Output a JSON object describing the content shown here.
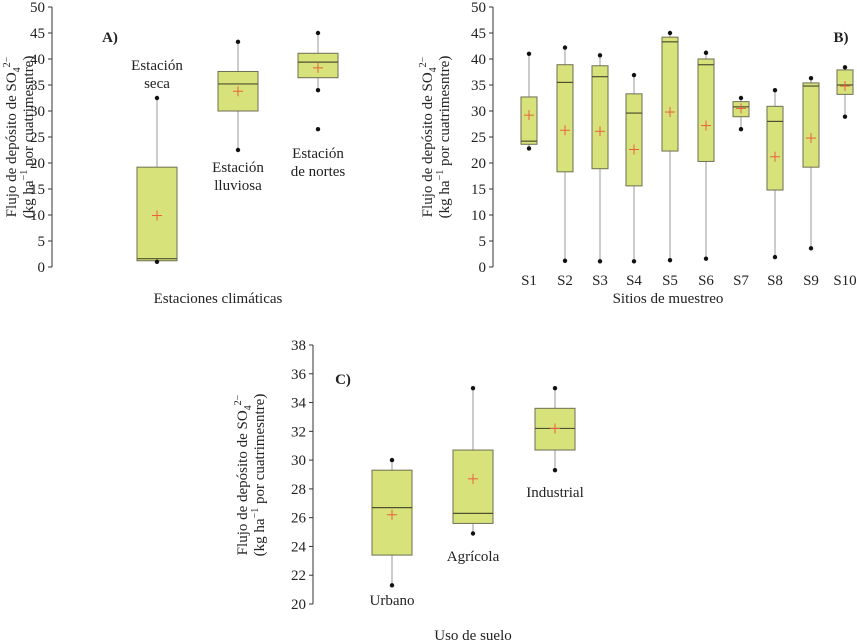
{
  "colors": {
    "box_fill": "#d8e27a",
    "box_stroke": "#6e6e52",
    "median": "#4f4f32",
    "mean_marker": "#e8603c",
    "whisker": "#9a9a9a",
    "axis": "#333333"
  },
  "chart_data": [
    {
      "type": "box",
      "panel": "A)",
      "ylabel_line1": "Flujo de depósito de SO",
      "ylabel_sub": "4",
      "ylabel_sup": "2−",
      "ylabel_line2_pre": "(kg ha",
      "ylabel_line2_sup": "−1",
      "ylabel_line2_post": " por cuatrimesntre)",
      "xlabel": "Estaciones climáticas",
      "ylim": [
        0,
        50
      ],
      "yticks": [
        0,
        5,
        10,
        15,
        20,
        25,
        30,
        35,
        40,
        45,
        50
      ],
      "boxes": [
        {
          "label_lines": [
            "Estación",
            "seca"
          ],
          "label_pos": "above",
          "min": 1.0,
          "q1": 1.2,
          "median": 1.6,
          "q3": 19.2,
          "max": 32.5,
          "mean": 9.9
        },
        {
          "label_lines": [
            "Estación",
            "lluviosa"
          ],
          "label_pos": "below",
          "min": 22.5,
          "q1": 30.0,
          "median": 35.2,
          "q3": 37.6,
          "max": 43.3,
          "mean": 33.8
        },
        {
          "label_lines": [
            "Estación",
            "de nortes"
          ],
          "label_pos": "below",
          "min": 34.0,
          "q1": 36.4,
          "median": 39.4,
          "q3": 41.1,
          "max": 45.0,
          "outliers": [
            26.5
          ],
          "mean": 38.3
        }
      ]
    },
    {
      "type": "box",
      "panel": "B)",
      "ylabel_line1": "Flujo de depósito de SO",
      "ylabel_sub": "4",
      "ylabel_sup": "2−",
      "ylabel_line2_pre": "(kg ha",
      "ylabel_line2_sup": "−1",
      "ylabel_line2_post": " por cuatrimesntre)",
      "xlabel": "Sitios de muestreo",
      "ylim": [
        0,
        50
      ],
      "yticks": [
        0,
        5,
        10,
        15,
        20,
        25,
        30,
        35,
        40,
        45,
        50
      ],
      "boxes": [
        {
          "label": "S1",
          "min": 22.8,
          "q1": 23.6,
          "median": 24.2,
          "q3": 32.7,
          "max": 41.0,
          "mean": 29.2
        },
        {
          "label": "S2",
          "min": 1.2,
          "q1": 18.3,
          "median": 35.5,
          "q3": 38.9,
          "max": 42.2,
          "mean": 26.3
        },
        {
          "label": "S3",
          "min": 1.1,
          "q1": 18.9,
          "median": 36.6,
          "q3": 38.7,
          "max": 40.7,
          "mean": 26.1
        },
        {
          "label": "S4",
          "min": 1.1,
          "q1": 15.6,
          "median": 29.6,
          "q3": 33.3,
          "max": 36.9,
          "mean": 22.6
        },
        {
          "label": "S5",
          "min": 1.3,
          "q1": 22.3,
          "median": 43.3,
          "q3": 44.2,
          "max": 45.0,
          "mean": 29.8
        },
        {
          "label": "S6",
          "min": 1.6,
          "q1": 20.3,
          "median": 38.9,
          "q3": 40.0,
          "max": 41.2,
          "mean": 27.2
        },
        {
          "label": "S7",
          "min": 26.5,
          "q1": 28.9,
          "median": 30.8,
          "q3": 31.8,
          "max": 32.5,
          "mean": 30.5
        },
        {
          "label": "S8",
          "min": 1.9,
          "q1": 14.8,
          "median": 28.0,
          "q3": 30.9,
          "max": 34.0,
          "mean": 21.2
        },
        {
          "label": "S9",
          "min": 3.6,
          "q1": 19.2,
          "median": 34.8,
          "q3": 35.4,
          "max": 36.3,
          "mean": 24.8
        },
        {
          "label": "S10",
          "min": 28.9,
          "q1": 33.2,
          "median": 35.0,
          "q3": 37.9,
          "max": 38.4,
          "mean": 34.8
        }
      ]
    },
    {
      "type": "box",
      "panel": "C)",
      "ylabel_line1": "Flujo de depósito de SO",
      "ylabel_sub": "4",
      "ylabel_sup": "2−",
      "ylabel_line2_pre": "(kg ha",
      "ylabel_line2_sup": "−1",
      "ylabel_line2_post": " por cuatrimesntre)",
      "xlabel": "Uso de suelo",
      "ylim": [
        20,
        38
      ],
      "yticks": [
        20,
        22,
        24,
        26,
        28,
        30,
        32,
        34,
        36,
        38
      ],
      "boxes": [
        {
          "label_lines": [
            "Urbano"
          ],
          "label_pos": "below",
          "min": 21.3,
          "q1": 23.4,
          "median": 26.7,
          "q3": 29.3,
          "max": 30.0,
          "mean": 26.2
        },
        {
          "label_lines": [
            "Agrícola"
          ],
          "label_pos": "below",
          "min": 24.9,
          "q1": 25.6,
          "median": 26.3,
          "q3": 30.7,
          "max": 35.0,
          "mean": 28.7
        },
        {
          "label_lines": [
            "Industrial"
          ],
          "label_pos": "below",
          "min": 29.3,
          "q1": 30.7,
          "median": 32.2,
          "q3": 33.6,
          "max": 35.0,
          "mean": 32.2
        }
      ]
    }
  ]
}
